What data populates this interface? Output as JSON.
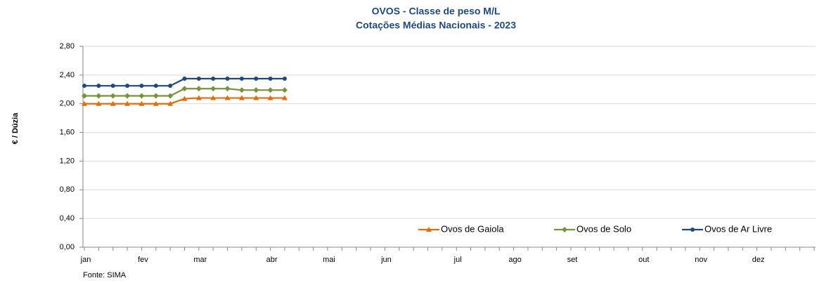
{
  "chart_data": {
    "type": "line",
    "title": "OVOS - Classe de peso M/L",
    "subtitle": "Cotações Médias Nacionais - 2023",
    "y_label": "€ / Dúzia",
    "note": "Fonte: SIMA",
    "categories": [
      "jan",
      null,
      null,
      null,
      "fev",
      null,
      null,
      null,
      "mar",
      null,
      null,
      null,
      null,
      "abr",
      null,
      null,
      null,
      "mai",
      null,
      null,
      null,
      "jun",
      null,
      null,
      null,
      null,
      "jul",
      null,
      null,
      null,
      "ago",
      null,
      null,
      null,
      "set",
      null,
      null,
      null,
      null,
      "out",
      null,
      null,
      null,
      "nov",
      null,
      null,
      null,
      "dez",
      null,
      null,
      null,
      null
    ],
    "series": [
      {
        "name": "Ovos de Gaiola",
        "color": "#e36c09",
        "marker": "triangle",
        "values": [
          2.0,
          2.0,
          2.0,
          2.0,
          2.0,
          2.0,
          2.0,
          2.07,
          2.08,
          2.08,
          2.08,
          2.08,
          2.08,
          2.08,
          2.08,
          null,
          null,
          null,
          null,
          null,
          null,
          null,
          null,
          null,
          null,
          null,
          null,
          null,
          null,
          null,
          null,
          null,
          null,
          null,
          null,
          null,
          null,
          null,
          null,
          null,
          null,
          null,
          null,
          null,
          null,
          null,
          null,
          null,
          null,
          null,
          null,
          null
        ]
      },
      {
        "name": "Ovos de Solo",
        "color": "#77933c",
        "marker": "diamond",
        "values": [
          2.11,
          2.11,
          2.11,
          2.11,
          2.11,
          2.11,
          2.11,
          2.21,
          2.21,
          2.21,
          2.21,
          2.19,
          2.19,
          2.19,
          2.19,
          null,
          null,
          null,
          null,
          null,
          null,
          null,
          null,
          null,
          null,
          null,
          null,
          null,
          null,
          null,
          null,
          null,
          null,
          null,
          null,
          null,
          null,
          null,
          null,
          null,
          null,
          null,
          null,
          null,
          null,
          null,
          null,
          null,
          null,
          null,
          null,
          null
        ]
      },
      {
        "name": "Ovos de Ar Livre",
        "color": "#1f497d",
        "marker": "circle",
        "values": [
          2.25,
          2.25,
          2.25,
          2.25,
          2.25,
          2.25,
          2.25,
          2.35,
          2.35,
          2.35,
          2.35,
          2.35,
          2.35,
          2.35,
          2.35,
          null,
          null,
          null,
          null,
          null,
          null,
          null,
          null,
          null,
          null,
          null,
          null,
          null,
          null,
          null,
          null,
          null,
          null,
          null,
          null,
          null,
          null,
          null,
          null,
          null,
          null,
          null,
          null,
          null,
          null,
          null,
          null,
          null,
          null,
          null,
          null,
          null
        ]
      }
    ],
    "ylim": [
      0,
      2.8
    ],
    "yticks": [
      {
        "value": 0,
        "label": "0,00"
      },
      {
        "value": 0.4,
        "label": "0,40"
      },
      {
        "value": 0.8,
        "label": "0,80"
      },
      {
        "value": 1.2,
        "label": "1,20"
      },
      {
        "value": 1.6,
        "label": "1,60"
      },
      {
        "value": 2.0,
        "label": "2,00"
      },
      {
        "value": 2.4,
        "label": "2,40"
      },
      {
        "value": 2.8,
        "label": "2,80"
      }
    ],
    "grid": true,
    "legend": "bottom-right"
  }
}
